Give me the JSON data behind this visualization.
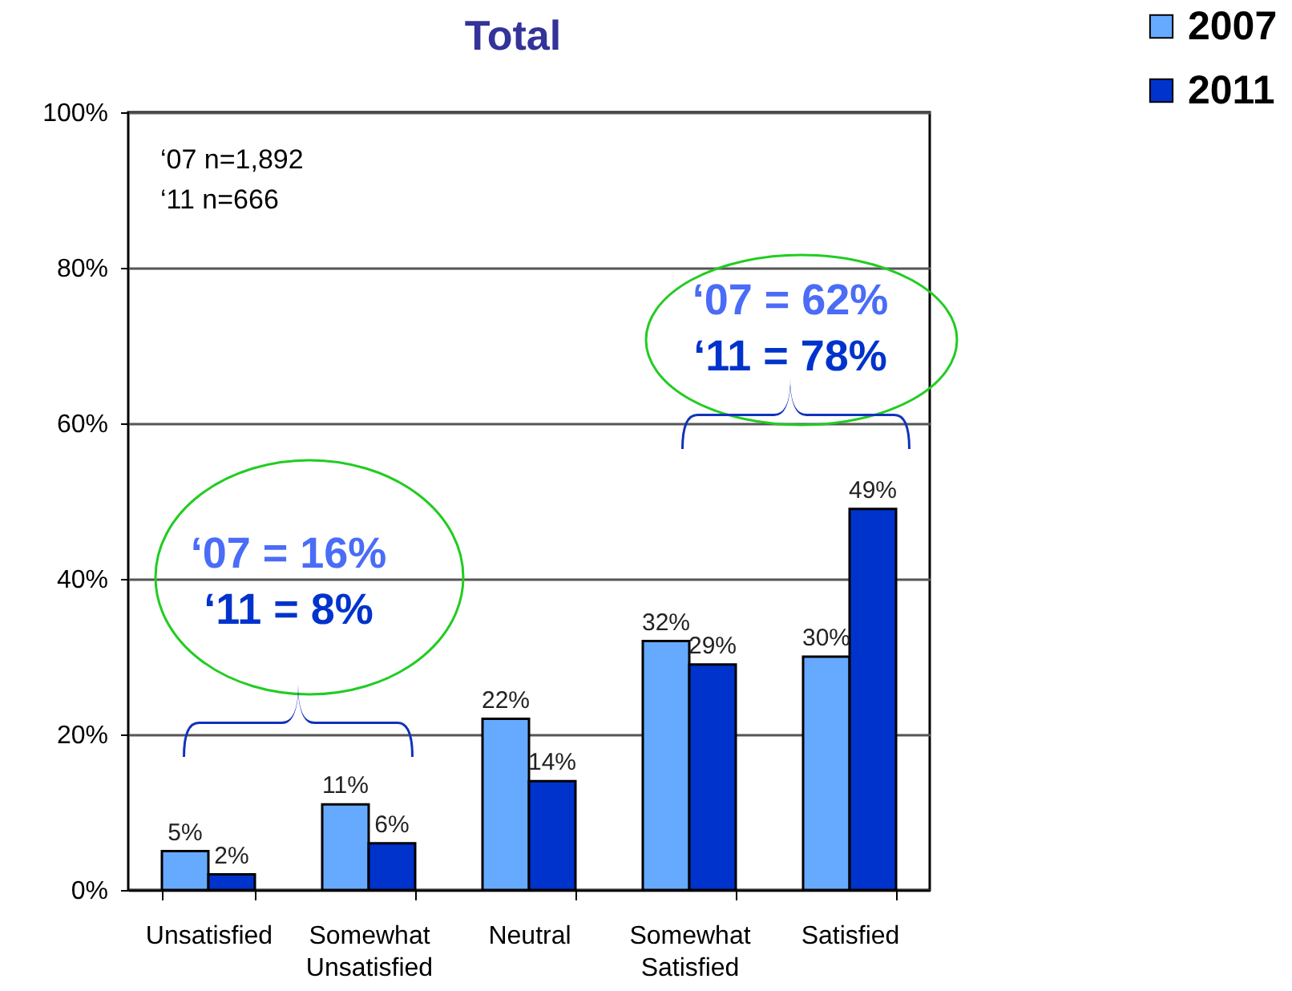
{
  "chart_data": {
    "type": "bar",
    "title": "Total",
    "categories": [
      "Unsatisfied",
      "Somewhat Unsatisfied",
      "Neutral",
      "Somewhat Satisfied",
      "Satisfied"
    ],
    "series": [
      {
        "name": "2007",
        "color": "#66aaff",
        "values": [
          5,
          11,
          22,
          32,
          30
        ],
        "value_labels": [
          "5%",
          "11%",
          "22%",
          "32%",
          "30%"
        ]
      },
      {
        "name": "2011",
        "color": "#0033cc",
        "values": [
          2,
          6,
          14,
          29,
          49
        ],
        "value_labels": [
          "2%",
          "6%",
          "14%",
          "29%",
          "49%"
        ]
      }
    ],
    "ylim": [
      0,
      100
    ],
    "yticks": [
      {
        "value": 0,
        "label": "0%"
      },
      {
        "value": 20,
        "label": "20%"
      },
      {
        "value": 40,
        "label": "40%"
      },
      {
        "value": 60,
        "label": "60%"
      },
      {
        "value": 80,
        "label": "80%"
      },
      {
        "value": 100,
        "label": "100%"
      }
    ],
    "grid": "y",
    "legend": "top right",
    "annotations": [
      "‘07 n=1,892",
      "‘11 n=666",
      "‘07 = 62%",
      "‘11 = 78%",
      "‘07 = 16%",
      "‘11 =   8%"
    ]
  }
}
